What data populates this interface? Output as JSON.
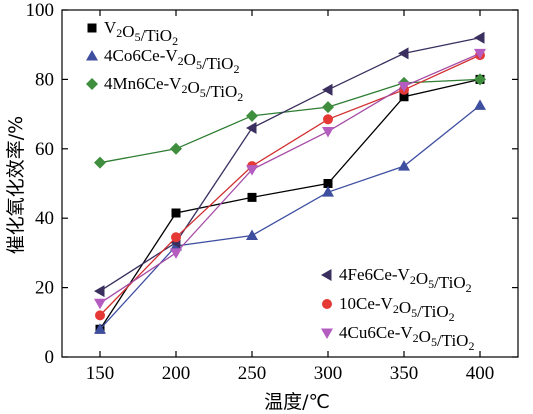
{
  "chart_data": {
    "type": "line",
    "xlabel": "温度/℃",
    "ylabel": "催化氧化效率/%",
    "xlim": [
      125,
      425
    ],
    "ylim": [
      0,
      100
    ],
    "x_ticks": [
      150,
      200,
      250,
      300,
      350,
      400
    ],
    "y_ticks": [
      0,
      20,
      40,
      60,
      80,
      100
    ],
    "x": [
      150,
      200,
      250,
      300,
      350,
      400
    ],
    "grid": false,
    "series": [
      {
        "name": "V2O5/TiO2",
        "name_parts": [
          [
            "V",
            ""
          ],
          [
            "2",
            "sub"
          ],
          [
            "O",
            ""
          ],
          [
            "5",
            "sub"
          ],
          [
            "/TiO",
            ""
          ],
          [
            "2",
            "sub"
          ]
        ],
        "marker": "square",
        "color": "#000000",
        "marker_color": "#000000",
        "legend": "top-left",
        "values": [
          8,
          41.5,
          46,
          50,
          75,
          80
        ]
      },
      {
        "name": "4Co6Ce-V2O5/TiO2",
        "name_parts": [
          [
            "4Co6Ce-V",
            ""
          ],
          [
            "2",
            "sub"
          ],
          [
            "O",
            ""
          ],
          [
            "5",
            "sub"
          ],
          [
            "/TiO",
            ""
          ],
          [
            "2",
            "sub"
          ]
        ],
        "marker": "triangle-up",
        "color": "#3e4fa0",
        "marker_color": "#3e4fa0",
        "legend": "top-left",
        "values": [
          8,
          32,
          35,
          47.5,
          55,
          72.5
        ]
      },
      {
        "name": "4Mn6Ce-V2O5/TiO2",
        "name_parts": [
          [
            "4Mn6Ce-V",
            ""
          ],
          [
            "2",
            "sub"
          ],
          [
            "O",
            ""
          ],
          [
            "5",
            "sub"
          ],
          [
            "/TiO",
            ""
          ],
          [
            "2",
            "sub"
          ]
        ],
        "marker": "diamond",
        "color": "#2e7d32",
        "marker_color": "#3e8e3e",
        "legend": "top-left",
        "values": [
          56,
          60,
          69.5,
          72,
          79,
          80
        ]
      },
      {
        "name": "4Fe6Ce-V2O5/TiO2",
        "name_parts": [
          [
            "4Fe6Ce-V",
            ""
          ],
          [
            "2",
            "sub"
          ],
          [
            "O",
            ""
          ],
          [
            "5",
            "sub"
          ],
          [
            "/TiO",
            ""
          ],
          [
            "2",
            "sub"
          ]
        ],
        "marker": "triangle-left",
        "color": "#3a2f5e",
        "marker_color": "#3a2f5e",
        "legend": "bottom-right",
        "values": [
          19,
          33,
          66,
          77,
          87.5,
          92
        ]
      },
      {
        "name": "10Ce-V2O5/TiO2",
        "name_parts": [
          [
            "10Ce-V",
            ""
          ],
          [
            "2",
            "sub"
          ],
          [
            "O",
            ""
          ],
          [
            "5",
            "sub"
          ],
          [
            "/TiO",
            ""
          ],
          [
            "2",
            "sub"
          ]
        ],
        "marker": "circle",
        "color": "#d32f2f",
        "marker_color": "#e53935",
        "legend": "bottom-right",
        "values": [
          12,
          34.5,
          55,
          68.5,
          77,
          87
        ]
      },
      {
        "name": "4Cu6Ce-V2O5/TiO2",
        "name_parts": [
          [
            "4Cu6Ce-V",
            ""
          ],
          [
            "2",
            "sub"
          ],
          [
            "O",
            ""
          ],
          [
            "5",
            "sub"
          ],
          [
            "/TiO",
            ""
          ],
          [
            "2",
            "sub"
          ]
        ],
        "marker": "triangle-down",
        "color": "#a64ca6",
        "marker_color": "#b45cc0",
        "legend": "bottom-right",
        "values": [
          15.5,
          30,
          54,
          65,
          78,
          87.5
        ]
      }
    ]
  }
}
